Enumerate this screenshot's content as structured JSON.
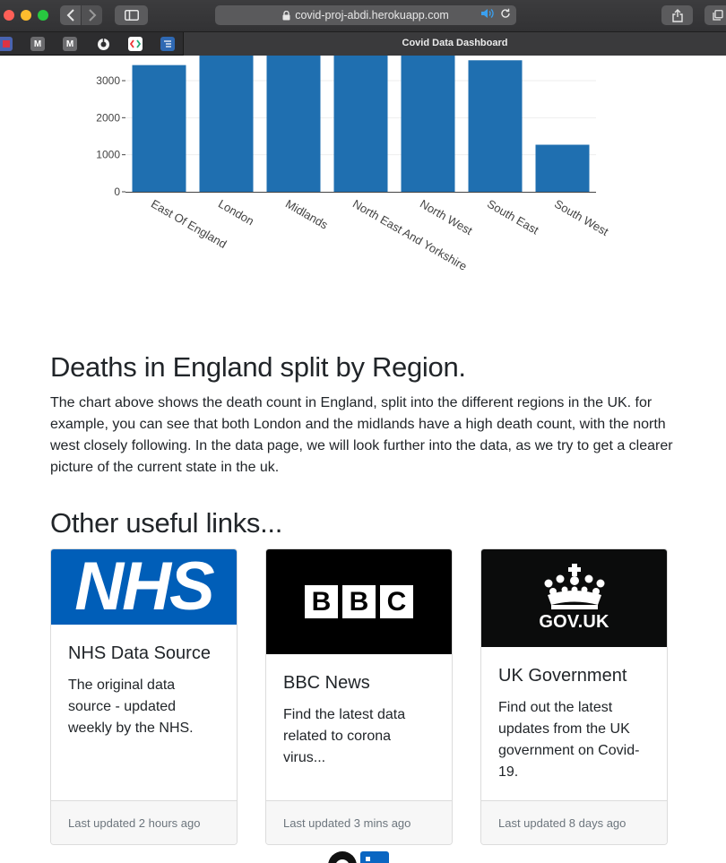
{
  "browser": {
    "url": "covid-proj-abdi.herokuapp.com",
    "tab_title": "Covid Data Dashboard",
    "bookmarks": [
      {
        "name": "bookmark-1",
        "label": ""
      },
      {
        "name": "bookmark-m1",
        "label": "M"
      },
      {
        "name": "bookmark-m2",
        "label": "M"
      },
      {
        "name": "bookmark-globe",
        "label": ""
      },
      {
        "name": "bookmark-code",
        "label": ""
      },
      {
        "name": "bookmark-list",
        "label": ""
      }
    ]
  },
  "chart_data": {
    "type": "bar",
    "categories": [
      "East Of England",
      "London",
      "Midlands",
      "North East And Yorkshire",
      "North West",
      "South East",
      "South West"
    ],
    "values": [
      3420,
      3900,
      3900,
      3900,
      3900,
      3550,
      1270
    ],
    "ytick_labels": [
      "0",
      "1000",
      "2000",
      "3000"
    ],
    "ylim": [
      0,
      3500
    ],
    "color": "#1f6fb0",
    "grid": true
  },
  "section": {
    "heading": "Deaths in England split by Region.",
    "text": "The chart above shows the death count in England, split into the different regions in the UK. for example, you can see that both London and the midlands have a high death count, with the north west closely following. In the data page, we will look further into the data, as we try to get a clearer picture of the current state in the uk."
  },
  "links": {
    "heading": "Other useful links...",
    "cards": [
      {
        "logo_text": "NHS",
        "title": "NHS Data Source",
        "text": "The original data source - updated weekly by the NHS.",
        "footer": "Last updated 2 hours ago"
      },
      {
        "logo_text": [
          "B",
          "B",
          "C"
        ],
        "title": "BBC News",
        "text": "Find the latest data related to corona virus...",
        "footer": "Last updated 3 mins ago"
      },
      {
        "logo_text": "GOV.UK",
        "title": "UK Government",
        "text": "Find out the latest updates from the UK government on Covid-19.",
        "footer": "Last updated 8 days ago"
      }
    ]
  },
  "colors": {
    "nhs_blue": "#005eb8",
    "bbc_black": "#000000",
    "gov_black": "#0b0c0c",
    "bar": "#1f6fb0"
  }
}
